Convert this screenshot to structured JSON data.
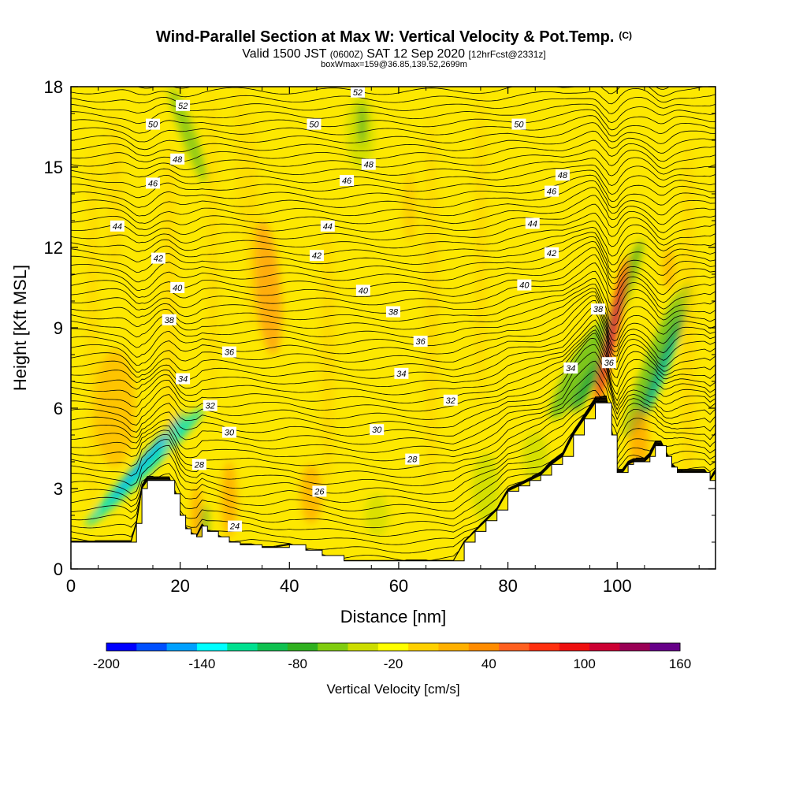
{
  "title": {
    "main": "Wind-Parallel Section at Max W: Vertical Velocity & Pot.Temp.",
    "mark": "(C)",
    "valid_prefix": "Valid 1500 JST",
    "valid_z": "(0600Z)",
    "valid_date": "SAT 12 Sep 2020",
    "fcst": "[12hrFcst@2331z]",
    "boxline": "boxWmax=159@36.85,139.52,2699m"
  },
  "chart_data": {
    "type": "heatmap",
    "xlabel": "Distance [nm]",
    "ylabel": "Height [Kft MSL]",
    "xlim": [
      0,
      118
    ],
    "ylim": [
      0,
      18
    ],
    "x_ticks": [
      0,
      20,
      40,
      60,
      80,
      100
    ],
    "y_ticks": [
      0,
      3,
      6,
      9,
      12,
      15,
      18
    ],
    "terrain": {
      "x": [
        0,
        11,
        12,
        13,
        14,
        15,
        16,
        17,
        18,
        19,
        20,
        21,
        22,
        23,
        24,
        25,
        27,
        29,
        31,
        33,
        35,
        37,
        40,
        43,
        46,
        50,
        55,
        60,
        64,
        68,
        70,
        72,
        74,
        76,
        78,
        80,
        82,
        84,
        86,
        88,
        90,
        92,
        94,
        96,
        98,
        99,
        100,
        101,
        102,
        103,
        104,
        105,
        106,
        107,
        108,
        109,
        110,
        111,
        112,
        114,
        116,
        117,
        118
      ],
      "height": [
        1.0,
        1.0,
        1.7,
        3.0,
        3.3,
        3.3,
        3.3,
        3.3,
        3.3,
        2.8,
        2.0,
        1.5,
        1.3,
        1.2,
        1.6,
        1.4,
        1.2,
        1.0,
        0.9,
        0.9,
        0.8,
        0.8,
        0.9,
        0.7,
        0.5,
        0.3,
        0.3,
        0.3,
        0.3,
        0.3,
        0.3,
        1.0,
        1.4,
        1.8,
        2.2,
        2.9,
        3.1,
        3.3,
        3.5,
        3.9,
        4.2,
        5.0,
        5.6,
        6.2,
        6.2,
        5.0,
        3.6,
        3.6,
        3.9,
        4.0,
        4.0,
        4.0,
        4.2,
        4.6,
        4.6,
        4.2,
        3.8,
        3.6,
        3.6,
        3.6,
        3.6,
        3.3,
        3.6
      ]
    },
    "velocity_scale": {
      "label": "Vertical Velocity [cm/s]",
      "tick_values": [
        -200,
        -140,
        -80,
        -20,
        40,
        100,
        160
      ],
      "bins": [
        -200,
        160
      ],
      "colors": [
        "#0000ff",
        "#0050ff",
        "#00a0ff",
        "#00ffff",
        "#00e090",
        "#10c050",
        "#30b020",
        "#80cc10",
        "#ccdd00",
        "#ffff00",
        "#ffd000",
        "#ffb000",
        "#ff8c00",
        "#ff6020",
        "#ff3010",
        "#ee1010",
        "#cc0033",
        "#990055",
        "#660088"
      ]
    },
    "features": [
      {
        "kind": "down",
        "x": 13.5,
        "y": 3.8,
        "w": 45,
        "h": 1.3,
        "rx": 1.4,
        "ry": 3.1,
        "c": "#00e0c0",
        "o": 0.9
      },
      {
        "kind": "down",
        "x": 14,
        "y": 4.2,
        "w": 40,
        "h": 1.3,
        "rx": 0.7,
        "ry": 2.2,
        "c": "#00b0ff",
        "o": 0.9
      },
      {
        "kind": "down",
        "x": 21.5,
        "y": 16.2,
        "w": -20,
        "h": 1.0,
        "rx": 1.3,
        "ry": 1.9,
        "c": "#66c020",
        "o": 0.7
      },
      {
        "kind": "down",
        "x": 53,
        "y": 16.3,
        "w": 0,
        "h": 1.0,
        "rx": 2.5,
        "ry": 1.4,
        "c": "#ccdd00",
        "o": 0.85
      },
      {
        "kind": "down",
        "x": 53.3,
        "y": 16.6,
        "w": 0,
        "h": 1.0,
        "rx": 0.7,
        "ry": 0.8,
        "c": "#44b020",
        "o": 0.8
      },
      {
        "kind": "down",
        "x": 93.5,
        "y": 7.5,
        "w": 30,
        "h": 1.0,
        "rx": 2.3,
        "ry": 2.2,
        "c": "#66c020",
        "o": 0.85
      },
      {
        "kind": "down",
        "x": 95,
        "y": 7.0,
        "w": 30,
        "h": 1.0,
        "rx": 1.2,
        "ry": 1.3,
        "c": "#10a040",
        "o": 0.85
      },
      {
        "kind": "down",
        "x": 101,
        "y": 10.3,
        "w": 20,
        "h": 1.0,
        "rx": 1.2,
        "ry": 2.1,
        "c": "#55b020",
        "o": 0.85
      },
      {
        "kind": "down",
        "x": 107.5,
        "y": 7.8,
        "w": 22,
        "h": 1.0,
        "rx": 2.2,
        "ry": 3.1,
        "c": "#66c020",
        "o": 0.85
      },
      {
        "kind": "down",
        "x": 108,
        "y": 7.5,
        "w": 22,
        "h": 1.0,
        "rx": 1.0,
        "ry": 2.5,
        "c": "#10a050",
        "o": 0.9
      },
      {
        "kind": "down",
        "x": 108.4,
        "y": 7.3,
        "w": 22,
        "h": 1.0,
        "rx": 0.45,
        "ry": 1.5,
        "c": "#00d0c0",
        "o": 0.9
      },
      {
        "kind": "down",
        "x": 76,
        "y": 3.0,
        "w": 0,
        "h": 1.0,
        "rx": 2.5,
        "ry": 1.3,
        "c": "#ccdd00",
        "o": 0.85
      },
      {
        "kind": "down",
        "x": 85,
        "y": 4.2,
        "w": 0,
        "h": 1.0,
        "rx": 2.3,
        "ry": 0.9,
        "c": "#ccdd00",
        "o": 0.8
      },
      {
        "kind": "down",
        "x": 56,
        "y": 2.0,
        "w": 0,
        "h": 1.0,
        "rx": 2.2,
        "ry": 0.8,
        "c": "#ccdd00",
        "o": 0.7
      },
      {
        "kind": "down",
        "x": 24.5,
        "y": 1.7,
        "w": 0,
        "h": 1.0,
        "rx": 0.6,
        "ry": 0.7,
        "c": "#44b030",
        "o": 0.8
      },
      {
        "kind": "up",
        "x": 99,
        "y": 8.8,
        "w": 12,
        "h": 1.0,
        "rx": 1.0,
        "ry": 2.9,
        "c": "#ff4010",
        "o": 0.95
      },
      {
        "kind": "up",
        "x": 99,
        "y": 8.7,
        "w": 12,
        "h": 1.0,
        "rx": 0.5,
        "ry": 2.3,
        "c": "#cc0030",
        "o": 0.95
      },
      {
        "kind": "up",
        "x": 99,
        "y": 8.8,
        "w": 12,
        "h": 1.0,
        "rx": 0.25,
        "ry": 1.4,
        "c": "#880066",
        "o": 0.9
      },
      {
        "kind": "up",
        "x": 36,
        "y": 10.5,
        "w": -5,
        "h": 1.0,
        "rx": 2.4,
        "ry": 2.5,
        "c": "#ff9a10",
        "o": 0.75
      },
      {
        "kind": "up",
        "x": 8,
        "y": 6.0,
        "w": 0,
        "h": 1.0,
        "rx": 3.8,
        "ry": 2.2,
        "c": "#ffa000",
        "o": 0.5
      },
      {
        "kind": "up",
        "x": 29,
        "y": 2.6,
        "w": 0,
        "h": 1.0,
        "rx": 1.4,
        "ry": 1.4,
        "c": "#ff9a00",
        "o": 0.65
      },
      {
        "kind": "up",
        "x": 44,
        "y": 2.8,
        "w": 0,
        "h": 1.0,
        "rx": 2.0,
        "ry": 1.1,
        "c": "#ff9a00",
        "o": 0.6
      },
      {
        "kind": "up",
        "x": 23,
        "y": 2.0,
        "w": 0,
        "h": 1.0,
        "rx": 0.9,
        "ry": 1.1,
        "c": "#ff8800",
        "o": 0.6
      },
      {
        "kind": "up",
        "x": 104,
        "y": 4.8,
        "w": 0,
        "h": 1.0,
        "rx": 1.8,
        "ry": 1.2,
        "c": "#ff9a00",
        "o": 0.7
      },
      {
        "kind": "up",
        "x": 109.5,
        "y": 11.2,
        "w": 0,
        "h": 1.0,
        "rx": 1.2,
        "ry": 0.8,
        "c": "#ff9a00",
        "o": 0.55
      },
      {
        "kind": "up",
        "x": 62,
        "y": 13.5,
        "w": 0,
        "h": 1.0,
        "rx": 1.3,
        "ry": 1.3,
        "c": "#ffb400",
        "o": 0.45
      }
    ],
    "contour_labels": [
      {
        "t": "52",
        "x": 20.5,
        "y": 17.3
      },
      {
        "t": "52",
        "x": 52.5,
        "y": 17.8
      },
      {
        "t": "50",
        "x": 15,
        "y": 16.6
      },
      {
        "t": "50",
        "x": 44.5,
        "y": 16.6
      },
      {
        "t": "50",
        "x": 82,
        "y": 16.6
      },
      {
        "t": "48",
        "x": 19.5,
        "y": 15.3
      },
      {
        "t": "48",
        "x": 54.5,
        "y": 15.1
      },
      {
        "t": "48",
        "x": 90,
        "y": 14.7
      },
      {
        "t": "46",
        "x": 15,
        "y": 14.4
      },
      {
        "t": "46",
        "x": 50.5,
        "y": 14.5
      },
      {
        "t": "46",
        "x": 88,
        "y": 14.1
      },
      {
        "t": "44",
        "x": 8.5,
        "y": 12.8
      },
      {
        "t": "44",
        "x": 47,
        "y": 12.8
      },
      {
        "t": "44",
        "x": 84.5,
        "y": 12.9
      },
      {
        "t": "42",
        "x": 16,
        "y": 11.6
      },
      {
        "t": "42",
        "x": 45,
        "y": 11.7
      },
      {
        "t": "42",
        "x": 88,
        "y": 11.8
      },
      {
        "t": "40",
        "x": 19.5,
        "y": 10.5
      },
      {
        "t": "40",
        "x": 53.5,
        "y": 10.4
      },
      {
        "t": "40",
        "x": 83,
        "y": 10.6
      },
      {
        "t": "38",
        "x": 18,
        "y": 9.3
      },
      {
        "t": "38",
        "x": 59,
        "y": 9.6
      },
      {
        "t": "38",
        "x": 96.5,
        "y": 9.7
      },
      {
        "t": "36",
        "x": 29,
        "y": 8.1
      },
      {
        "t": "36",
        "x": 64,
        "y": 8.5
      },
      {
        "t": "36",
        "x": 98.5,
        "y": 7.7
      },
      {
        "t": "34",
        "x": 20.5,
        "y": 7.1
      },
      {
        "t": "34",
        "x": 60.5,
        "y": 7.3
      },
      {
        "t": "34",
        "x": 91.5,
        "y": 7.5
      },
      {
        "t": "32",
        "x": 25.5,
        "y": 6.1
      },
      {
        "t": "32",
        "x": 69.5,
        "y": 6.3
      },
      {
        "t": "30",
        "x": 29,
        "y": 5.1
      },
      {
        "t": "30",
        "x": 56,
        "y": 5.2
      },
      {
        "t": "28",
        "x": 23.5,
        "y": 3.9
      },
      {
        "t": "28",
        "x": 62.5,
        "y": 4.1
      },
      {
        "t": "26",
        "x": 45.5,
        "y": 2.9
      },
      {
        "t": "24",
        "x": 30,
        "y": 1.6
      }
    ],
    "grid": false,
    "legend": "colorbar-bottom"
  }
}
